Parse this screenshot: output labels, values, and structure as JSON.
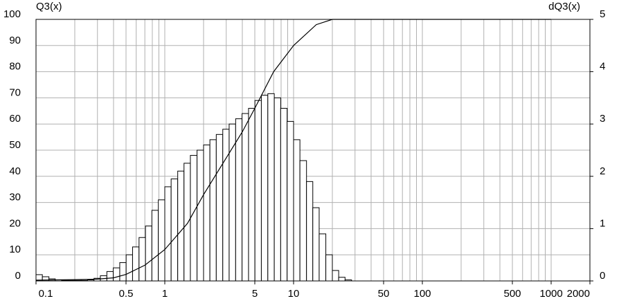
{
  "chart_data": {
    "type": "histogram",
    "y_label": "Q3(x)",
    "y2_label": "dQ3(x)",
    "xscale": "log",
    "xlim": [
      0.1,
      2000
    ],
    "xticks": [
      0.1,
      0.5,
      1,
      5,
      10,
      50,
      100,
      500,
      1000,
      2000
    ],
    "ylim": [
      0,
      100
    ],
    "yticks": [
      0,
      10,
      20,
      30,
      40,
      50,
      60,
      70,
      80,
      90,
      100
    ],
    "y2lim": [
      0,
      5
    ],
    "y2ticks": [
      0,
      1,
      2,
      3,
      4,
      5
    ],
    "grid": true,
    "histogram": {
      "axis": "y2",
      "color": "#ffffff",
      "bins": [
        0.1,
        0.112,
        0.126,
        0.141,
        0.158,
        0.178,
        0.2,
        0.224,
        0.251,
        0.282,
        0.316,
        0.355,
        0.398,
        0.447,
        0.501,
        0.562,
        0.631,
        0.708,
        0.794,
        0.891,
        1,
        1.12,
        1.26,
        1.41,
        1.58,
        1.78,
        2,
        2.24,
        2.51,
        2.82,
        3.16,
        3.55,
        3.98,
        4.47,
        5.01,
        5.62,
        6.31,
        7.08,
        7.94,
        8.91,
        10,
        11.2,
        12.6,
        14.1,
        15.8,
        17.8,
        20,
        22.4,
        25.1,
        28.2
      ],
      "values": [
        0.12,
        0.08,
        0.04,
        0.02,
        0.01,
        0.01,
        0.01,
        0.01,
        0.02,
        0.05,
        0.1,
        0.18,
        0.25,
        0.35,
        0.5,
        0.65,
        0.83,
        1.05,
        1.35,
        1.55,
        1.8,
        1.95,
        2.1,
        2.25,
        2.4,
        2.5,
        2.6,
        2.7,
        2.8,
        2.9,
        3.0,
        3.1,
        3.2,
        3.3,
        3.45,
        3.55,
        3.58,
        3.5,
        3.3,
        3.05,
        2.7,
        2.3,
        1.9,
        1.4,
        0.9,
        0.5,
        0.2,
        0.07,
        0.02
      ]
    },
    "cumulative": {
      "color": "#000000",
      "x": [
        0.1,
        0.2,
        0.3,
        0.4,
        0.5,
        0.7,
        1,
        1.5,
        2,
        3,
        4,
        5,
        7,
        10,
        15,
        20,
        30,
        1000
      ],
      "values": [
        0.3,
        0.5,
        0.7,
        1.2,
        2.5,
        6,
        12,
        22,
        33,
        47,
        57,
        66,
        80,
        90,
        98,
        100,
        100,
        100
      ]
    }
  }
}
